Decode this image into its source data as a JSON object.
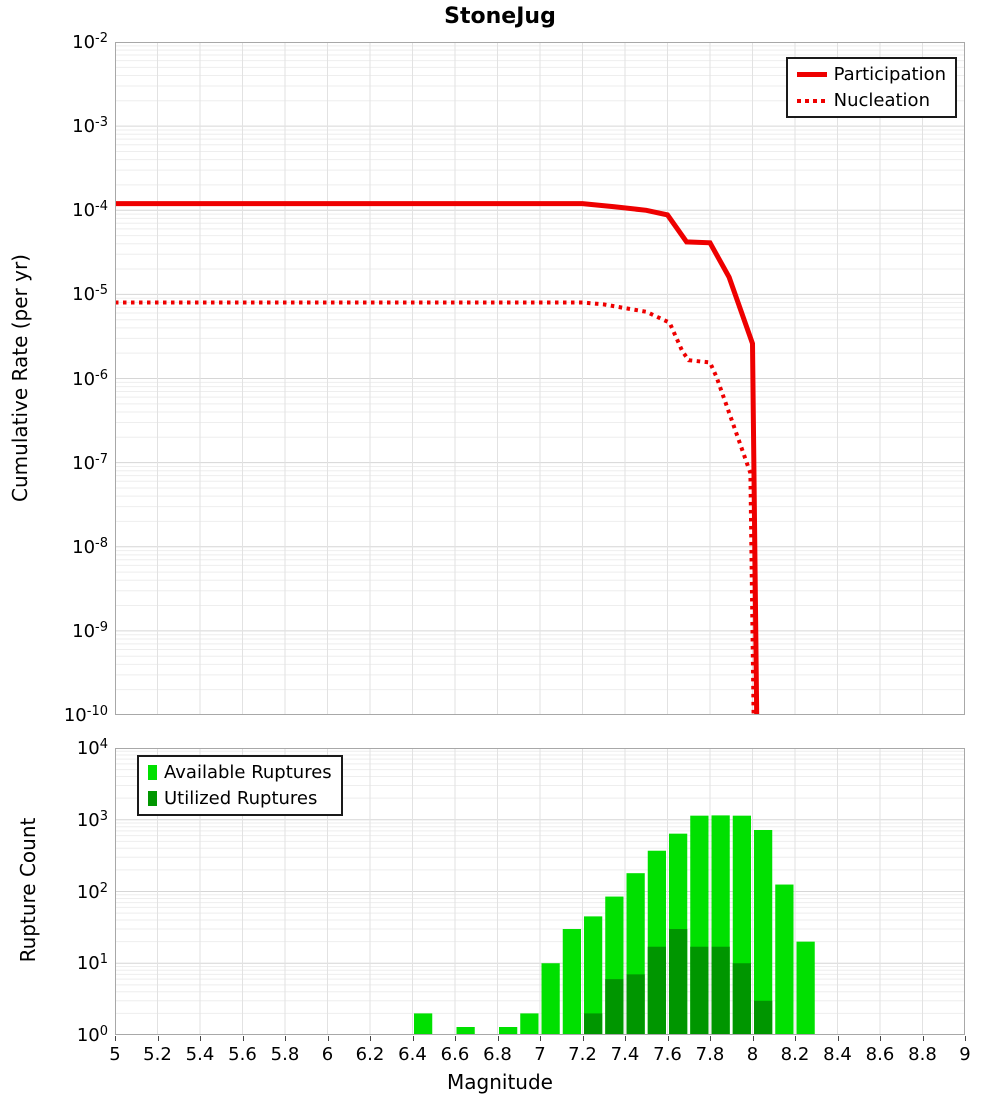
{
  "title": "StoneJug",
  "xlabel": "Magnitude",
  "colors": {
    "participation_red": "#ee0000",
    "available_green": "#00e000",
    "utilized_green": "#009600",
    "grid_major": "#d6d6d6",
    "grid_minor": "#eeeeee",
    "grid_vertical": "#e2e2e2",
    "plot_border": "#a8a8a8"
  },
  "x_tick_labels": [
    "5",
    "5.2",
    "5.4",
    "5.6",
    "5.8",
    "6",
    "6.2",
    "6.4",
    "6.6",
    "6.8",
    "7",
    "7.2",
    "7.4",
    "7.6",
    "7.8",
    "8",
    "8.2",
    "8.4",
    "8.6",
    "8.8",
    "9"
  ],
  "chart_data": [
    {
      "type": "line",
      "title": "StoneJug",
      "xlabel": "Magnitude",
      "ylabel": "Cumulative Rate (per yr)",
      "xlim": [
        5,
        9
      ],
      "x_tick_step": 0.2,
      "yscale": "log",
      "ylim": [
        1e-10,
        0.01
      ],
      "y_tick_exponents": [
        "-2",
        "-3",
        "-4",
        "-5",
        "-6",
        "-7",
        "-8",
        "-9",
        "-10"
      ],
      "grid": true,
      "legend_position": "top-right",
      "series": [
        {
          "name": "Participation",
          "line": "solid",
          "color": "#ee0000",
          "points": [
            [
              5.0,
              0.00012
            ],
            [
              7.2,
              0.00012
            ],
            [
              7.35,
              0.00011
            ],
            [
              7.5,
              0.0001
            ],
            [
              7.6,
              8.8e-05
            ],
            [
              7.69,
              4.2e-05
            ],
            [
              7.8,
              4.1e-05
            ],
            [
              7.89,
              1.6e-05
            ],
            [
              8.0,
              2.6e-06
            ],
            [
              8.02,
              1e-10
            ]
          ]
        },
        {
          "name": "Nucleation",
          "line": "dotted",
          "color": "#ee0000",
          "points": [
            [
              5.0,
              8e-06
            ],
            [
              7.2,
              8e-06
            ],
            [
              7.3,
              7.6e-06
            ],
            [
              7.5,
              6.2e-06
            ],
            [
              7.61,
              4.6e-06
            ],
            [
              7.67,
              2.1e-06
            ],
            [
              7.7,
              1.65e-06
            ],
            [
              7.8,
              1.55e-06
            ],
            [
              7.83,
              1.05e-06
            ],
            [
              7.99,
              7.5e-08
            ],
            [
              8.005,
              1e-10
            ]
          ]
        }
      ]
    },
    {
      "type": "bar",
      "ylabel": "Rupture Count",
      "xlim": [
        5,
        9
      ],
      "yscale": "log",
      "ylim": [
        1,
        10000
      ],
      "y_tick_exponents": [
        "4",
        "3",
        "2",
        "1",
        "0"
      ],
      "bin_width": 0.1,
      "legend_position": "top-left",
      "categories": [
        6.45,
        6.65,
        6.85,
        6.95,
        7.05,
        7.15,
        7.25,
        7.35,
        7.45,
        7.55,
        7.65,
        7.75,
        7.85,
        7.95,
        8.05,
        8.15,
        8.25
      ],
      "series": [
        {
          "name": "Available Ruptures",
          "color": "#00e000",
          "values": [
            2,
            1,
            1,
            2,
            10,
            30,
            45,
            85,
            180,
            370,
            640,
            1140,
            1150,
            1140,
            720,
            125,
            20
          ]
        },
        {
          "name": "Utilized Ruptures",
          "color": "#009600",
          "values": [
            0,
            0,
            0,
            0,
            0,
            0,
            2,
            6,
            7,
            17,
            30,
            17,
            17,
            10,
            3,
            0,
            0
          ]
        }
      ]
    }
  ]
}
